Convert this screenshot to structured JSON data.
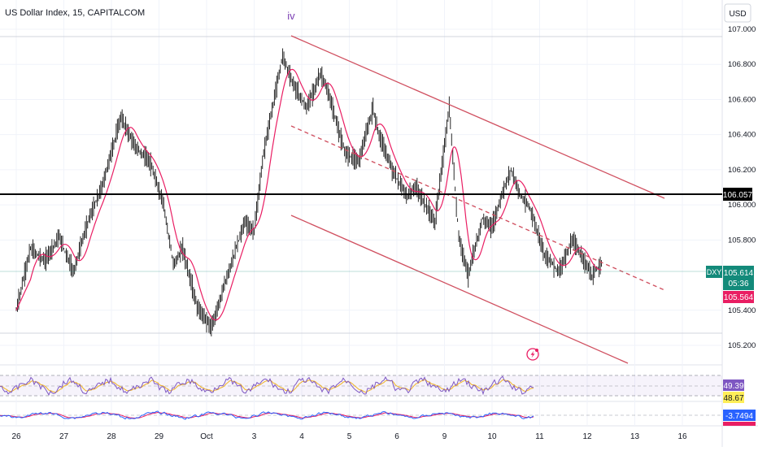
{
  "header": {
    "title": "US Dollar Index, 15, CAPITALCOM"
  },
  "currency_button": {
    "label": "USD"
  },
  "wave_label": "iv",
  "price_badges": {
    "horizontal_line": "106.057",
    "symbol": "DXY",
    "last_price": "105.614",
    "countdown": "05:36",
    "ma_value": "105.564"
  },
  "indicators": {
    "rsi": {
      "value_1": "49.39",
      "value_2": "48.67"
    },
    "macd": {
      "value_1": "-3.7494"
    }
  },
  "colors": {
    "background": "#ffffff",
    "candles": "#111111",
    "moving_average": "#e91e63",
    "channel": "#d05060",
    "horizontal_line": "#000000",
    "rsi_line": "#7e57c2",
    "rsi_signal": "#f0b323",
    "macd_line": "#2962ff",
    "macd_signal": "#e91e63",
    "last_price_badge": "#138a7a",
    "ma_badge": "#e91e63",
    "wave_label": "#7b3fb3",
    "yellow_badge": "#ffee58",
    "blue_badge": "#2962ff"
  },
  "icons": {
    "flash": "lightning-alert-icon"
  },
  "chart_data": {
    "type": "line",
    "ylim": [
      105.1,
      107.05
    ],
    "y_ticks": [
      "107.000",
      "106.800",
      "106.600",
      "106.400",
      "106.200",
      "106.000",
      "105.800",
      "105.400",
      "105.200"
    ],
    "x_tick_labels": [
      "26",
      "27",
      "28",
      "29",
      "Oct",
      "3",
      "4",
      "5",
      "6",
      "9",
      "10",
      "11",
      "12",
      "13",
      "16"
    ],
    "series": [
      {
        "x_day": [
          0,
          0.3,
          0.6,
          0.9,
          1.2,
          1.5,
          1.8,
          2.2,
          2.5,
          2.8,
          3.1,
          3.3,
          3.5,
          3.8,
          4.1,
          4.5,
          4.8,
          5.0,
          5.2,
          5.6,
          5.8,
          6.1,
          6.4,
          6.6,
          6.9,
          7.2,
          7.5,
          7.6,
          7.9,
          8.2,
          8.4,
          8.5,
          8.8,
          9.1,
          9.3,
          9.5,
          9.8,
          10.0,
          10.2,
          10.4,
          10.6,
          10.8,
          11.1,
          11.4,
          11.7,
          12.1,
          12.3
        ],
        "values": [
          105.4,
          105.75,
          105.68,
          105.82,
          105.62,
          105.9,
          106.1,
          106.5,
          106.33,
          106.25,
          106.0,
          105.66,
          105.75,
          105.42,
          105.3,
          105.65,
          105.9,
          105.85,
          106.3,
          106.85,
          106.7,
          106.55,
          106.75,
          106.6,
          106.3,
          106.25,
          106.55,
          106.42,
          106.2,
          106.05,
          106.1,
          106.05,
          105.9,
          106.55,
          105.82,
          105.6,
          105.92,
          105.87,
          106.05,
          106.2,
          106.05,
          105.98,
          105.72,
          105.62,
          105.8,
          105.6,
          105.66
        ]
      }
    ],
    "horizontal_line": 106.057,
    "last_price": 105.614,
    "ma_last": 105.564
  }
}
